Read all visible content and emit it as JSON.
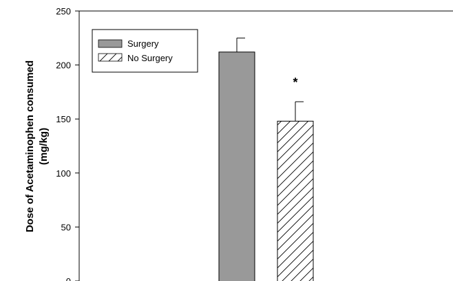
{
  "chart_data": {
    "type": "bar",
    "ylabel": "Dose of Acetaminophen consumed (mg/kg)",
    "ylabel_lines": [
      "Dose of Acetaminophen consumed",
      "(mg/kg)"
    ],
    "xlabel": "",
    "title": "",
    "ylim": [
      0,
      250
    ],
    "yticks": [
      "0",
      "50",
      "100",
      "150",
      "200",
      "250"
    ],
    "grid": false,
    "legend_placement": "top-left",
    "series": [
      {
        "name": "Surgery",
        "value": 212,
        "error": 13,
        "fill": "#999999",
        "pattern": "solid"
      },
      {
        "name": "No Surgery",
        "value": 148,
        "error": 18,
        "fill": "#ffffff",
        "pattern": "hatched"
      }
    ],
    "annotations": [
      {
        "text": "*",
        "series": "No Surgery"
      }
    ]
  },
  "colors": {
    "surgery_fill": "#999999",
    "axis": "#000000",
    "background": "#ffffff"
  }
}
